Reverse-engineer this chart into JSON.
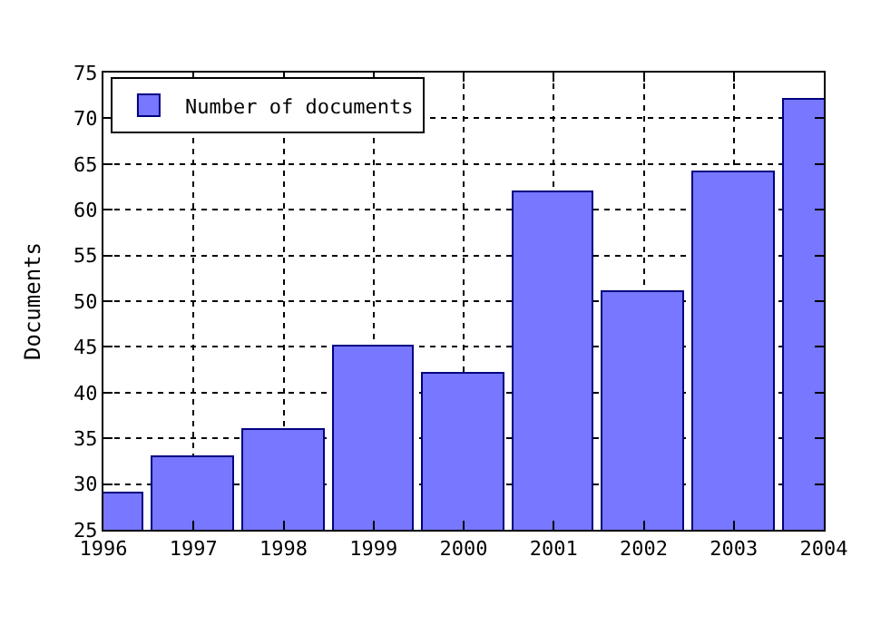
{
  "chart_data": {
    "type": "bar",
    "ylabel": "Documents",
    "x": [
      1996,
      1997,
      1998,
      1999,
      2000,
      2001,
      2002,
      2003,
      2004
    ],
    "series": [
      {
        "name": "Number of documents",
        "color": "#7777ff",
        "values": [
          29,
          33,
          36,
          45,
          42,
          62,
          51,
          64,
          72
        ]
      }
    ],
    "xlim": [
      1996,
      2004
    ],
    "xticks": [
      1996,
      1997,
      1998,
      1999,
      2000,
      2001,
      2002,
      2003,
      2004
    ],
    "ylim": [
      25,
      75
    ],
    "yticks": [
      25,
      30,
      35,
      40,
      45,
      50,
      55,
      60,
      65,
      70,
      75
    ],
    "grid": true,
    "legend": "top left"
  }
}
